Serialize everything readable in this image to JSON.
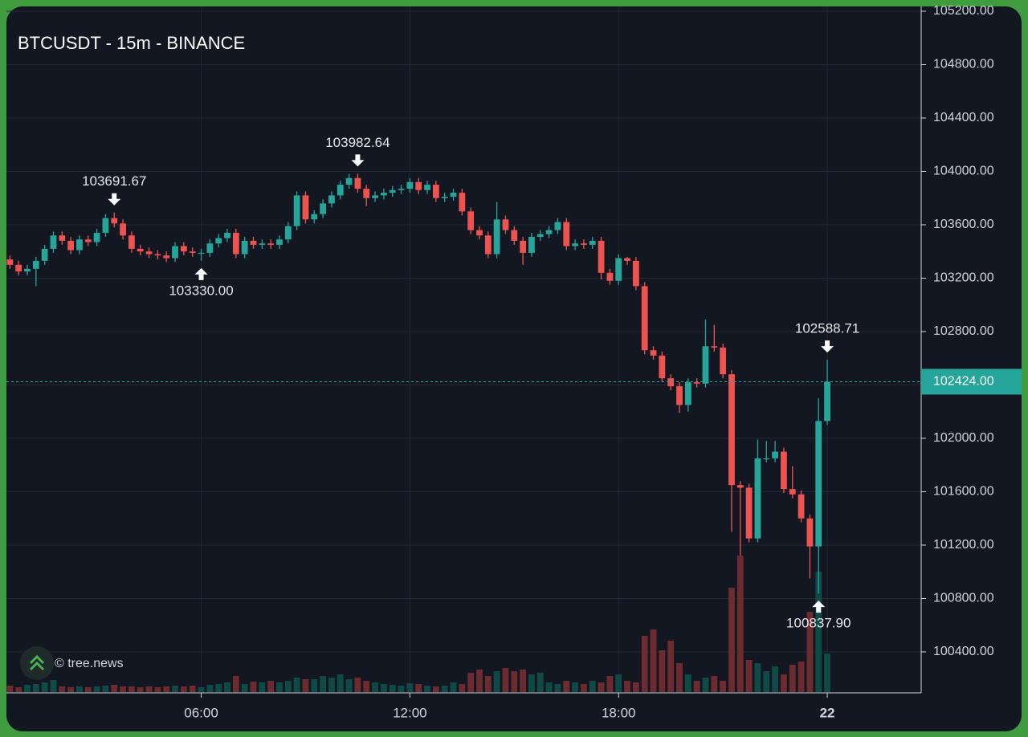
{
  "chart_data": {
    "type": "candlestick",
    "title": "BTCUSDT - 15m - BINANCE",
    "watermark": "© tree.news",
    "up_color": "#26a69a",
    "down_color": "#ef5350",
    "volume_up_color": "#0f4a47",
    "volume_down_color": "#6b2b2f",
    "grid": true,
    "x": [
      0,
      1,
      2,
      3,
      4,
      5,
      6,
      7,
      8,
      9,
      10,
      11,
      12,
      13,
      14,
      15,
      16,
      17,
      18,
      19,
      20,
      21,
      22,
      23,
      24,
      25,
      26,
      27,
      28,
      29,
      30,
      31,
      32,
      33,
      34,
      35,
      36,
      37,
      38,
      39,
      40,
      41,
      42,
      43,
      44,
      45,
      46,
      47,
      48,
      49,
      50,
      51,
      52,
      53,
      54,
      55,
      56,
      57,
      58,
      59,
      60,
      61,
      62,
      63,
      64,
      65,
      66,
      67,
      68,
      69,
      70,
      71,
      72,
      73,
      74,
      75,
      76,
      77,
      78,
      79,
      80,
      81,
      82,
      83,
      84,
      85,
      86,
      87,
      88,
      89,
      90,
      91,
      92,
      93,
      94
    ],
    "open": [
      103340,
      103300,
      103250,
      103270,
      103330,
      103420,
      103520,
      103480,
      103410,
      103490,
      103470,
      103540,
      103650,
      103610,
      103520,
      103420,
      103400,
      103380,
      103370,
      103350,
      103440,
      103400,
      103390,
      103390,
      103460,
      103500,
      103540,
      103380,
      103480,
      103450,
      103460,
      103450,
      103490,
      103590,
      103820,
      103640,
      103680,
      103760,
      103820,
      103900,
      103950,
      103870,
      103800,
      103820,
      103840,
      103860,
      103870,
      103920,
      103860,
      103900,
      103800,
      103810,
      103840,
      103700,
      103560,
      103520,
      103380,
      103640,
      103560,
      103480,
      103390,
      103510,
      103530,
      103560,
      103620,
      103440,
      103460,
      103450,
      103480,
      103240,
      103180,
      103350,
      103330,
      103140,
      102660,
      102620,
      102450,
      102390,
      102250,
      102420,
      102410,
      102690,
      102680,
      102480,
      101650,
      101630,
      101250,
      101850,
      101850,
      101900,
      101620,
      101580,
      101400,
      101190,
      102130
    ],
    "high": [
      103370,
      103330,
      103300,
      103360,
      103450,
      103550,
      103550,
      103510,
      103520,
      103520,
      103570,
      103680,
      103691.67,
      103640,
      103550,
      103450,
      103430,
      103410,
      103400,
      103470,
      103470,
      103430,
      103420,
      103490,
      103530,
      103570,
      103570,
      103510,
      103510,
      103490,
      103490,
      103520,
      103620,
      103850,
      103850,
      103710,
      103790,
      103850,
      103930,
      103980,
      103982.64,
      103900,
      103850,
      103870,
      103890,
      103900,
      103950,
      103950,
      103930,
      103930,
      103840,
      103870,
      103870,
      103730,
      103590,
      103550,
      103770,
      103670,
      103590,
      103510,
      103540,
      103560,
      103590,
      103650,
      103650,
      103490,
      103490,
      103510,
      103510,
      103270,
      103380,
      103360,
      103360,
      103170,
      102690,
      102650,
      102480,
      102420,
      102450,
      102450,
      102890,
      102850,
      102710,
      102510,
      101680,
      101660,
      101990,
      101980,
      101980,
      101930,
      101790,
      101610,
      101430,
      102300,
      102588.71
    ],
    "low": [
      103270,
      103220,
      103220,
      103140,
      103300,
      103390,
      103450,
      103380,
      103380,
      103440,
      103440,
      103510,
      103580,
      103490,
      103390,
      103370,
      103350,
      103340,
      103320,
      103320,
      103370,
      103360,
      103330,
      103360,
      103430,
      103470,
      103350,
      103350,
      103420,
      103420,
      103420,
      103420,
      103460,
      103560,
      103610,
      103610,
      103650,
      103730,
      103790,
      103870,
      103840,
      103740,
      103770,
      103790,
      103810,
      103830,
      103840,
      103830,
      103830,
      103770,
      103770,
      103780,
      103670,
      103530,
      103490,
      103350,
      103350,
      103530,
      103450,
      103300,
      103360,
      103480,
      103500,
      103530,
      103410,
      103410,
      103420,
      103420,
      103190,
      103150,
      103150,
      103300,
      103110,
      102630,
      102590,
      102420,
      102360,
      102190,
      102200,
      102380,
      102380,
      102650,
      102450,
      101300,
      101120,
      101220,
      101220,
      101820,
      101820,
      101590,
      101550,
      101370,
      100950,
      100837.9,
      102100
    ],
    "close": [
      103300,
      103250,
      103270,
      103330,
      103420,
      103520,
      103480,
      103410,
      103490,
      103470,
      103540,
      103650,
      103610,
      103520,
      103420,
      103400,
      103380,
      103370,
      103350,
      103440,
      103400,
      103390,
      103390,
      103460,
      103500,
      103540,
      103380,
      103480,
      103450,
      103460,
      103450,
      103490,
      103590,
      103820,
      103640,
      103680,
      103760,
      103820,
      103900,
      103950,
      103870,
      103800,
      103820,
      103840,
      103860,
      103870,
      103920,
      103860,
      103900,
      103800,
      103810,
      103840,
      103700,
      103560,
      103520,
      103380,
      103640,
      103560,
      103480,
      103390,
      103510,
      103530,
      103560,
      103620,
      103440,
      103460,
      103450,
      103480,
      103240,
      103180,
      103350,
      103330,
      103140,
      102660,
      102620,
      102450,
      102390,
      102250,
      102420,
      102410,
      102690,
      102680,
      102480,
      101650,
      101630,
      101250,
      101850,
      101850,
      101900,
      101620,
      101580,
      101400,
      101190,
      102130,
      102424
    ],
    "volume": [
      8,
      6,
      9,
      10,
      12,
      15,
      7,
      6,
      7,
      6,
      7,
      8,
      9,
      7,
      7,
      6,
      7,
      6,
      7,
      8,
      7,
      8,
      6,
      9,
      10,
      12,
      20,
      10,
      13,
      12,
      14,
      12,
      14,
      18,
      16,
      16,
      20,
      18,
      22,
      16,
      18,
      14,
      12,
      10,
      9,
      8,
      11,
      10,
      8,
      7,
      8,
      12,
      10,
      24,
      28,
      20,
      26,
      30,
      26,
      28,
      22,
      24,
      12,
      10,
      14,
      12,
      10,
      14,
      12,
      20,
      22,
      14,
      12,
      70,
      78,
      52,
      64,
      36,
      22,
      14,
      18,
      20,
      14,
      130,
      170,
      40,
      36,
      26,
      32,
      22,
      34,
      38,
      100,
      150,
      48
    ],
    "xlim": [
      -0.4,
      104.8
    ],
    "xticks": [
      {
        "value": 22,
        "label": "06:00"
      },
      {
        "value": 46,
        "label": "12:00"
      },
      {
        "value": 70,
        "label": "18:00"
      },
      {
        "value": 94,
        "label": "22"
      }
    ],
    "ylim": [
      100099,
      105236
    ],
    "yticks": [
      {
        "value": 100400,
        "label": "100400.00"
      },
      {
        "value": 100800,
        "label": "100800.00"
      },
      {
        "value": 101200,
        "label": "101200.00"
      },
      {
        "value": 101600,
        "label": "101600.00"
      },
      {
        "value": 102000,
        "label": "102000.00"
      },
      {
        "value": 102400,
        "label": "102400.00"
      },
      {
        "value": 102800,
        "label": "102800.00"
      },
      {
        "value": 103200,
        "label": "103200.00"
      },
      {
        "value": 103600,
        "label": "103600.00"
      },
      {
        "value": 104000,
        "label": "104000.00"
      },
      {
        "value": 104400,
        "label": "104400.00"
      },
      {
        "value": 104800,
        "label": "104800.00"
      },
      {
        "value": 105200,
        "label": "105200.00"
      }
    ],
    "last_price": {
      "value": 102424,
      "label": "102424.00"
    },
    "annotations": [
      {
        "x": 12,
        "value": 103691.67,
        "label": "103691.67",
        "side": "high"
      },
      {
        "x": 22,
        "value": 103330,
        "label": "103330.00",
        "side": "low"
      },
      {
        "x": 40,
        "value": 103982.64,
        "label": "103982.64",
        "side": "high"
      },
      {
        "x": 94,
        "value": 102588.71,
        "label": "102588.71",
        "side": "high"
      },
      {
        "x": 93,
        "value": 100837.9,
        "label": "100837.90",
        "side": "low"
      }
    ]
  }
}
